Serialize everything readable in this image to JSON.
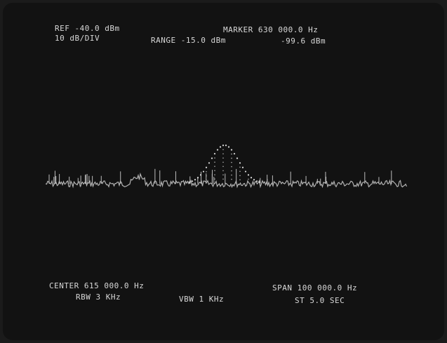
{
  "header": {
    "reference": "REF -40.0 dBm",
    "marker": "MARKER 630 000.0 Hz",
    "scale": "10 dB/DIV",
    "range": "RANGE -15.0 dBm",
    "marker_level": "-99.6 dBm"
  },
  "footer": {
    "center": "CENTER 615 000.0 Hz",
    "span": "SPAN 100 000.0 Hz",
    "rbw": "RBW 3 KHz",
    "vbw": "VBW 1 KHz",
    "sweep_time": "ST 5.0 SEC"
  }
}
